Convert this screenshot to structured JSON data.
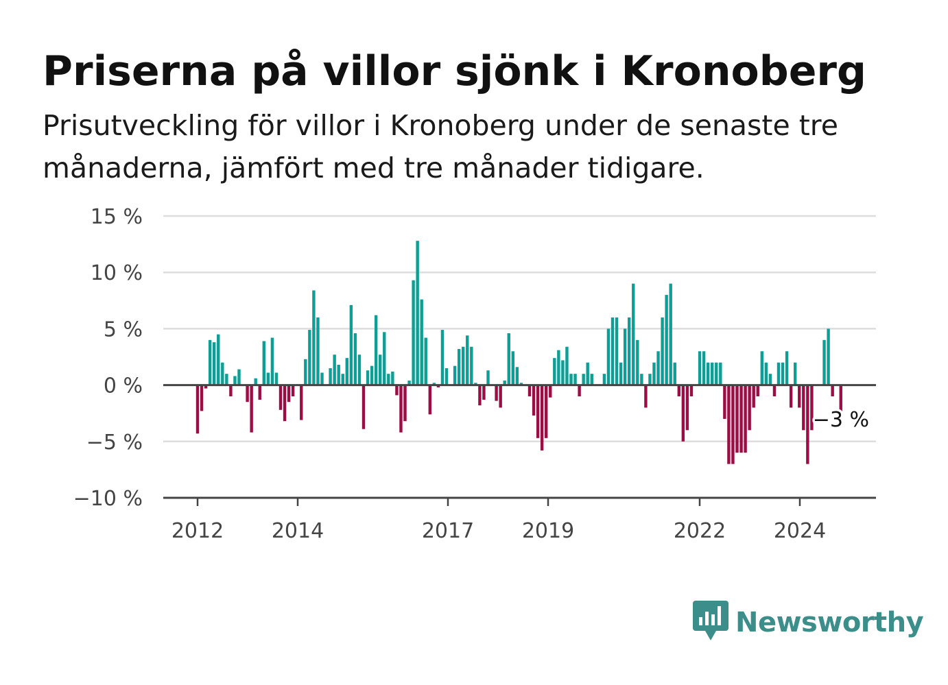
{
  "title": "Priserna på villor sjönk i Kronoberg",
  "subtitle": "Prisutveckling för villor i Kronoberg under de senaste tre månaderna, jämfört med tre månader tidigare.",
  "brand": {
    "name": "Newsworthy",
    "color": "#3b8e8a",
    "icon": "bar-chart-speech-bubble-icon"
  },
  "colors": {
    "positive": "#0f9e95",
    "negative": "#9b0e45",
    "zero_line": "#444444",
    "grid": "#dddddd"
  },
  "chart_data": {
    "type": "bar",
    "title": "Priserna på villor sjönk i Kronoberg",
    "xlabel": "",
    "ylabel": "",
    "ylim": [
      -10,
      15
    ],
    "y_ticks": [
      {
        "value": 15,
        "label": "15 %"
      },
      {
        "value": 10,
        "label": "10 %"
      },
      {
        "value": 5,
        "label": "5 %"
      },
      {
        "value": 0,
        "label": "0 %"
      },
      {
        "value": -5,
        "label": "−5 %"
      },
      {
        "value": -10,
        "label": "−10 %"
      }
    ],
    "x_ticks": [
      "2012",
      "2014",
      "2017",
      "2019",
      "2022",
      "2024"
    ],
    "grid": true,
    "last_value_label": "−3 %",
    "values": [
      -4.3,
      -2.3,
      -0.3,
      4.0,
      3.8,
      4.5,
      2.0,
      1.0,
      -1.0,
      0.8,
      1.4,
      0,
      -1.5,
      -4.2,
      0.6,
      -1.3,
      3.9,
      1.1,
      4.2,
      1.1,
      -2.2,
      -3.2,
      -1.5,
      -1.0,
      0,
      -3.1,
      2.3,
      4.9,
      8.4,
      6.0,
      1.1,
      0,
      1.5,
      2.7,
      1.8,
      1.0,
      2.4,
      7.1,
      4.6,
      2.7,
      -3.9,
      1.3,
      1.7,
      6.2,
      2.7,
      4.7,
      1.0,
      1.2,
      -0.9,
      -4.2,
      -3.2,
      0.4,
      9.3,
      12.8,
      7.6,
      4.2,
      -2.6,
      0.2,
      -0.2,
      4.9,
      1.5,
      0,
      1.7,
      3.2,
      3.4,
      4.4,
      3.4,
      0.2,
      -1.8,
      -1.3,
      1.3,
      0,
      -1.4,
      -2.0,
      0.4,
      4.6,
      3.0,
      1.6,
      0.2,
      0,
      -1.0,
      -2.7,
      -4.7,
      -5.8,
      -4.7,
      -1.1,
      2.4,
      3.1,
      2.2,
      3.4,
      1.0,
      1.0,
      -1.0,
      1.0,
      2.0,
      1.0,
      0,
      0,
      1.0,
      5.0,
      6.0,
      6.0,
      2.0,
      5.0,
      6.0,
      9.0,
      4.0,
      1.0,
      -2.0,
      1.0,
      2.0,
      3.0,
      6.0,
      8.0,
      9.0,
      2.0,
      -1.0,
      -5.0,
      -4.0,
      -1.0,
      0,
      3.0,
      3.0,
      2.0,
      2.0,
      2.0,
      2.0,
      -3.0,
      -7.0,
      -7.0,
      -6.0,
      -6.0,
      -6.0,
      -4.0,
      -2.0,
      -1.0,
      3.0,
      2.0,
      1.0,
      -1.0,
      2.0,
      2.0,
      3.0,
      -2.0,
      2.0,
      -2.0,
      -4.0,
      -7.0,
      -4.0,
      0,
      0,
      4.0,
      5.0,
      -1.0,
      0,
      -3.0
    ]
  }
}
